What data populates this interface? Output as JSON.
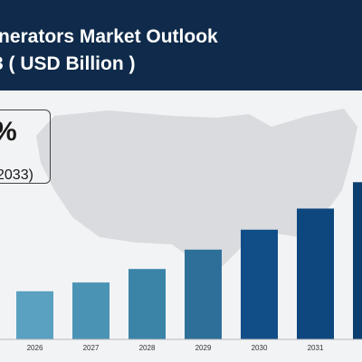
{
  "header": {
    "title_line1": "nerators Market Outlook",
    "title_line2": "3 ( USD Billion )"
  },
  "callout": {
    "value": "%",
    "period": "2033)"
  },
  "colors": {
    "header_bg": "#0f2a4a",
    "background": "#f2f3f5",
    "map": "#d9dbde"
  },
  "chart_data": {
    "type": "bar",
    "categories": [
      "",
      "2026",
      "2027",
      "2028",
      "2029",
      "2030",
      "2031",
      ""
    ],
    "values": [
      70,
      82,
      97,
      120,
      153,
      187,
      223,
      268
    ],
    "colors": [
      "#6aaecb",
      "#5aa0c0",
      "#4b93b4",
      "#3b84a8",
      "#2e6f99",
      "#114e87",
      "#0d477d",
      "#0b3d6e"
    ],
    "grid": false,
    "legend": "none",
    "ylim": [
      0,
      270
    ]
  }
}
